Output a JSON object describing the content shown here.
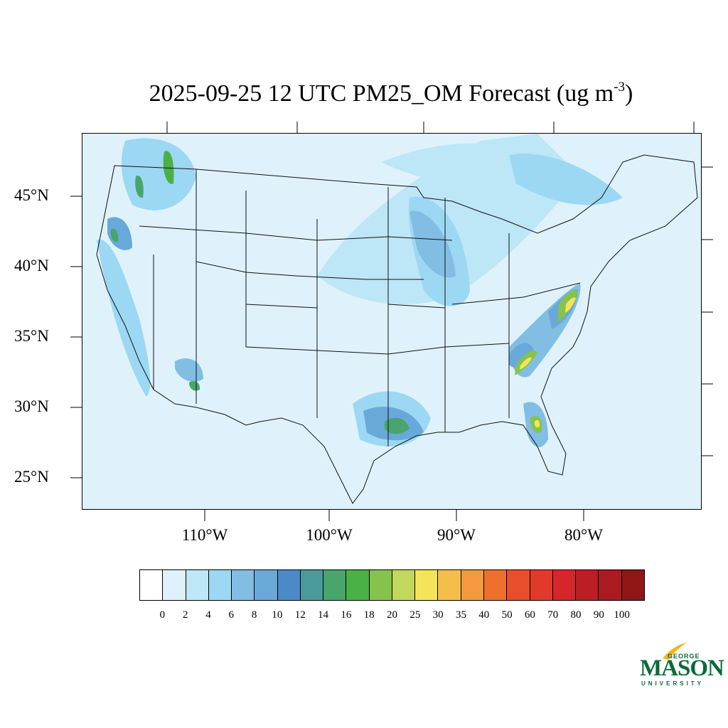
{
  "title": {
    "main": "2025-09-25 12 UTC PM25_OM Forecast (ug m",
    "superscript": "-3",
    "suffix": ")"
  },
  "map": {
    "lat_labels": [
      "45°N",
      "40°N",
      "35°N",
      "30°N",
      "25°N"
    ],
    "lon_labels": [
      "110°W",
      "100°W",
      "90°W",
      "80°W"
    ],
    "base_color": "#dff2fb"
  },
  "colorbar": {
    "colors": [
      "#ffffff",
      "#dff2fb",
      "#bde6f7",
      "#9cd8f4",
      "#82bee3",
      "#69a9da",
      "#4b8ac8",
      "#4a9a9b",
      "#49a56c",
      "#4ab147",
      "#85c34c",
      "#c3d85b",
      "#f5e45a",
      "#f5bd49",
      "#f39a3e",
      "#ef6f2d",
      "#e84e2b",
      "#e13a2a",
      "#d6262b",
      "#bd1e24",
      "#a91b21",
      "#8f1717"
    ],
    "labels": [
      "0",
      "2",
      "4",
      "6",
      "8",
      "10",
      "12",
      "14",
      "16",
      "18",
      "20",
      "25",
      "30",
      "35",
      "40",
      "50",
      "60",
      "70",
      "80",
      "90",
      "100"
    ]
  },
  "logo": {
    "george": "GEORGE",
    "mason": "MASON",
    "university": "UNIVERSITY",
    "brand_green": "#0b6b3a",
    "brand_gold": "#f2b619"
  }
}
